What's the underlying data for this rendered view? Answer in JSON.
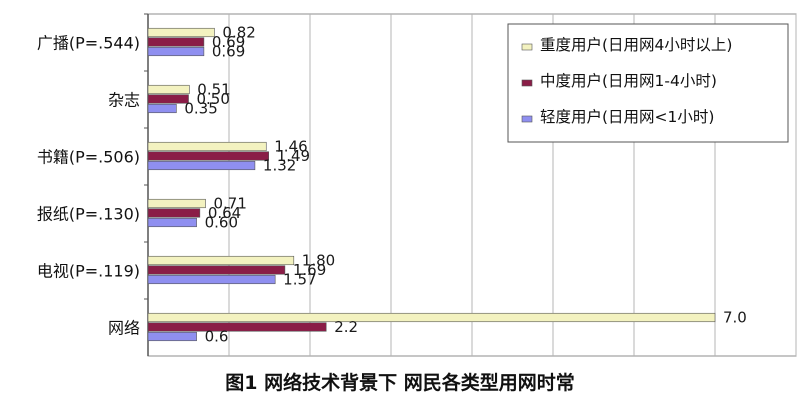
{
  "chart_data": {
    "type": "bar",
    "orientation": "horizontal",
    "categories": [
      "广播(P=.544)",
      "杂志",
      "书籍(P=.506)",
      "报纸(P=.130)",
      "电视(P=.119)",
      "网络"
    ],
    "series": [
      {
        "name": "重度用户(日用网4小时以上)",
        "color": "#f3f2c0",
        "values": [
          0.82,
          0.51,
          1.46,
          0.71,
          1.8,
          7.0
        ],
        "labels": [
          "0.82",
          "0.51",
          "1.46",
          "0.71",
          "1.80",
          "7.0"
        ]
      },
      {
        "name": "中度用户(日用网1-4小时)",
        "color": "#8a1d47",
        "values": [
          0.69,
          0.5,
          1.49,
          0.64,
          1.69,
          2.2
        ],
        "labels": [
          "0.69",
          "0.50",
          "1.49",
          "0.64",
          "1.69",
          "2.2"
        ]
      },
      {
        "name": "轻度用户(日用网<1小时)",
        "color": "#8f8ff0",
        "values": [
          0.69,
          0.35,
          1.32,
          0.6,
          1.57,
          0.6
        ],
        "labels": [
          "0.69",
          "0.35",
          "1.32",
          "0.60",
          "1.57",
          "0.6"
        ]
      }
    ],
    "xlim": [
      0,
      8
    ],
    "grid": true,
    "legend_position": "top-right"
  },
  "caption": "图1 网络技术背景下 网民各类型用网时常"
}
